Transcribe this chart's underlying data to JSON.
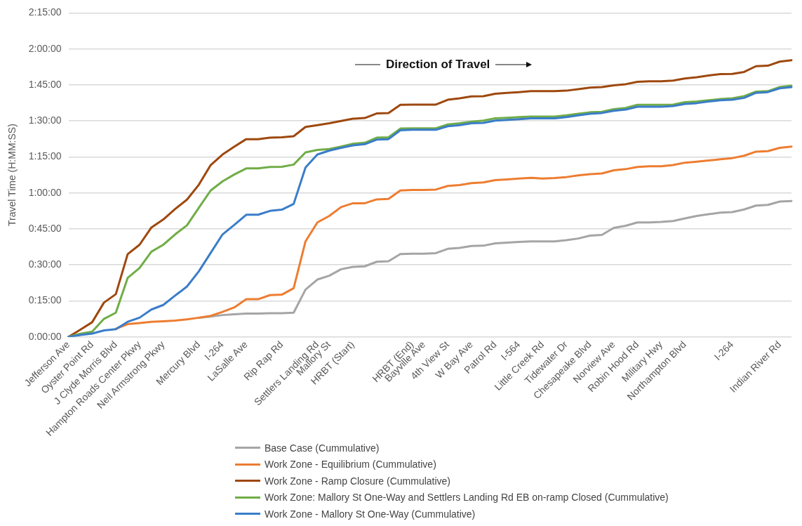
{
  "chart_data": {
    "type": "line",
    "ylabel": "Travel Time (H:MM:SS)",
    "annotations": [
      "Direction of Travel"
    ],
    "categories": [
      "Jefferson Ave",
      null,
      "Oyster Point Rd",
      null,
      "J Clyde Morris Blvd",
      null,
      "Hampton Roads Center Pkwy",
      null,
      "Neil Armstrong Pkwy",
      null,
      null,
      "Mercury Blvd",
      null,
      "I-264",
      null,
      "LaSalle Ave",
      null,
      null,
      "Rip Rap Rd",
      null,
      null,
      "Settlers Landing Rd",
      "Mallory St",
      null,
      "HRBT (Start)",
      null,
      null,
      null,
      null,
      "HRBT (End)",
      "Bayville Ave",
      null,
      "4th View St",
      null,
      "W Bay Ave",
      null,
      "Patrol Rd",
      null,
      "I-564",
      null,
      "Little Creek Rd",
      null,
      "Tidewater Dr",
      null,
      "Chesapeake Blvd",
      null,
      "Norview Ave",
      null,
      "Robin Hood Rd",
      null,
      "Military Hwy",
      null,
      "Northampton Blvd",
      null,
      null,
      null,
      "I-264",
      null,
      null,
      null,
      "Indian River Rd",
      null
    ],
    "series": [
      {
        "name": "Base Case (Cummulative)",
        "color": "#a5a5a5",
        "values": [
          null,
          null,
          null,
          null,
          null,
          null,
          null,
          null,
          null,
          null,
          null,
          8.0,
          8.5,
          9.1,
          9.4,
          9.7,
          9.7,
          9.9,
          9.9,
          10.1,
          19.7,
          23.9,
          25.5,
          28.2,
          29.2,
          29.4,
          31.3,
          31.5,
          34.5,
          34.7,
          34.7,
          34.9,
          36.7,
          37.1,
          37.9,
          38.0,
          39.0,
          39.3,
          39.6,
          39.8,
          39.8,
          39.8,
          40.3,
          41.0,
          42.2,
          42.5,
          45.4,
          46.3,
          47.7,
          47.7,
          47.9,
          48.3,
          49.4,
          50.4,
          51.1,
          51.8,
          52.0,
          53.1,
          54.7,
          55.0,
          56.4,
          56.6
        ]
      },
      {
        "name": "Work Zone - Equilibrium (Cummulative)",
        "color": "#ed7d31",
        "values": [
          null,
          null,
          null,
          null,
          3.4,
          5.3,
          5.8,
          6.3,
          6.5,
          6.8,
          7.3,
          8.0,
          8.8,
          10.4,
          12.3,
          15.7,
          15.7,
          17.4,
          17.6,
          20.3,
          39.8,
          47.7,
          50.4,
          54.1,
          55.7,
          55.7,
          57.3,
          57.5,
          61.0,
          61.2,
          61.2,
          61.4,
          62.9,
          63.3,
          64.1,
          64.4,
          65.3,
          65.6,
          66.0,
          66.3,
          66.0,
          66.2,
          66.6,
          67.3,
          67.8,
          68.1,
          69.4,
          69.9,
          70.8,
          71.1,
          71.1,
          71.6,
          72.6,
          73.0,
          73.5,
          74.0,
          74.5,
          75.5,
          77.2,
          77.4,
          78.8,
          79.3
        ]
      },
      {
        "name": "Work Zone - Ramp Closure (Cummulative)",
        "color": "#9e480e",
        "values": [
          0,
          3.0,
          6.1,
          14.3,
          17.8,
          34.5,
          38.4,
          45.6,
          48.9,
          53.3,
          57.2,
          63.4,
          71.6,
          76.0,
          79.3,
          82.4,
          82.4,
          83.0,
          83.2,
          83.6,
          87.5,
          88.2,
          89.0,
          90.0,
          90.9,
          91.2,
          93.1,
          93.3,
          96.7,
          96.8,
          96.8,
          96.8,
          98.8,
          99.4,
          100.2,
          100.3,
          101.3,
          101.7,
          102.0,
          102.4,
          102.4,
          102.4,
          102.6,
          103.2,
          103.9,
          104.1,
          104.8,
          105.3,
          106.3,
          106.5,
          106.5,
          106.8,
          107.7,
          108.2,
          108.9,
          109.5,
          109.6,
          110.4,
          112.8,
          113.0,
          114.7,
          115.3
        ]
      },
      {
        "name": "Work Zone: Mallory St One-Way and Settlers Landing Rd EB on-ramp Closed (Cummulative)",
        "color": "#70ad47",
        "values": [
          0,
          1.3,
          2.2,
          7.5,
          10.1,
          24.6,
          28.7,
          35.5,
          38.4,
          42.7,
          46.5,
          53.8,
          61.0,
          64.8,
          67.7,
          70.2,
          70.2,
          70.8,
          70.9,
          71.8,
          76.9,
          77.9,
          78.3,
          79.3,
          80.5,
          80.9,
          83.0,
          83.2,
          86.8,
          86.9,
          86.9,
          86.9,
          88.5,
          89.0,
          89.7,
          90.1,
          91.1,
          91.3,
          91.6,
          91.8,
          91.8,
          91.8,
          92.3,
          93.0,
          93.6,
          93.8,
          94.9,
          95.4,
          96.7,
          96.7,
          96.7,
          96.8,
          97.8,
          98.1,
          98.6,
          99.1,
          99.4,
          100.3,
          102.2,
          102.4,
          104.1,
          104.7
        ]
      },
      {
        "name": "Work Zone - Mallory St One-Way (Cummulative)",
        "color": "#3a7dc9",
        "values": [
          0,
          0.8,
          1.4,
          2.7,
          3.2,
          6.3,
          8.0,
          11.4,
          13.3,
          17.2,
          21.0,
          27.3,
          35.0,
          42.7,
          46.7,
          50.9,
          50.9,
          52.5,
          53.0,
          55.4,
          70.6,
          76.0,
          77.6,
          78.8,
          79.8,
          80.3,
          82.2,
          82.4,
          86.1,
          86.3,
          86.3,
          86.3,
          87.8,
          88.2,
          89.0,
          89.2,
          90.1,
          90.4,
          90.7,
          91.1,
          91.1,
          91.1,
          91.6,
          92.3,
          93.0,
          93.3,
          94.2,
          94.7,
          95.9,
          95.9,
          95.9,
          96.2,
          97.1,
          97.4,
          98.1,
          98.6,
          98.8,
          99.6,
          101.7,
          102.0,
          103.6,
          104.1
        ]
      }
    ],
    "ylim": [
      0,
      135
    ],
    "yticks": [
      {
        "value": 0,
        "label": "0:00:00"
      },
      {
        "value": 15,
        "label": "0:15:00"
      },
      {
        "value": 30,
        "label": "0:30:00"
      },
      {
        "value": 45,
        "label": "0:45:00"
      },
      {
        "value": 60,
        "label": "1:00:00"
      },
      {
        "value": 75,
        "label": "1:15:00"
      },
      {
        "value": 90,
        "label": "1:30:00"
      },
      {
        "value": 105,
        "label": "1:45:00"
      },
      {
        "value": 120,
        "label": "2:00:00"
      },
      {
        "value": 135,
        "label": "2:15:00"
      }
    ],
    "grid": "y",
    "legend": "bottom",
    "marker": "none",
    "line_style": "solid"
  }
}
